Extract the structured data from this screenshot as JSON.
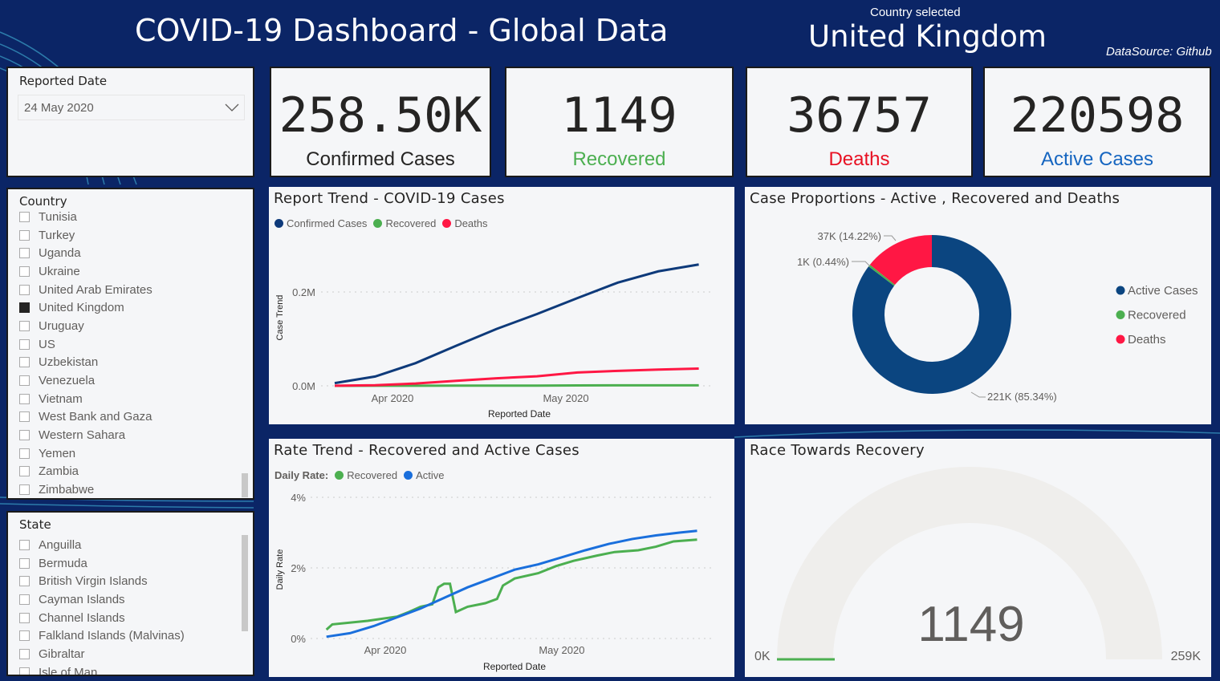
{
  "header": {
    "title": "COVID-19 Dashboard - Global Data",
    "country_caption": "Country selected",
    "country": "United Kingdom",
    "source": "DataSource: Github"
  },
  "date_slicer": {
    "title": "Reported Date",
    "value": "24 May 2020"
  },
  "kpis": [
    {
      "value": "258.50K",
      "label": "Confirmed Cases",
      "color": "#252423"
    },
    {
      "value": "1149",
      "label": "Recovered",
      "color": "#4caf50"
    },
    {
      "value": "36757",
      "label": "Deaths",
      "color": "#e81123"
    },
    {
      "value": "220598",
      "label": "Active Cases",
      "color": "#1565c0"
    }
  ],
  "country_slicer": {
    "title": "Country",
    "items": [
      {
        "label": "Tunisia",
        "checked": false
      },
      {
        "label": "Turkey",
        "checked": false
      },
      {
        "label": "Uganda",
        "checked": false
      },
      {
        "label": "Ukraine",
        "checked": false
      },
      {
        "label": "United Arab Emirates",
        "checked": false
      },
      {
        "label": "United Kingdom",
        "checked": true
      },
      {
        "label": "Uruguay",
        "checked": false
      },
      {
        "label": "US",
        "checked": false
      },
      {
        "label": "Uzbekistan",
        "checked": false
      },
      {
        "label": "Venezuela",
        "checked": false
      },
      {
        "label": "Vietnam",
        "checked": false
      },
      {
        "label": "West Bank and Gaza",
        "checked": false
      },
      {
        "label": "Western Sahara",
        "checked": false
      },
      {
        "label": "Yemen",
        "checked": false
      },
      {
        "label": "Zambia",
        "checked": false
      },
      {
        "label": "Zimbabwe",
        "checked": false
      }
    ]
  },
  "state_slicer": {
    "title": "State",
    "items": [
      {
        "label": "Anguilla"
      },
      {
        "label": "Bermuda"
      },
      {
        "label": "British Virgin Islands"
      },
      {
        "label": "Cayman Islands"
      },
      {
        "label": "Channel Islands"
      },
      {
        "label": "Falkland Islands (Malvinas)"
      },
      {
        "label": "Gibraltar"
      },
      {
        "label": "Isle of Man"
      }
    ]
  },
  "chart_data": [
    {
      "type": "line",
      "title": "Report Trend - COVID-19 Cases",
      "xlabel": "Reported Date",
      "ylabel": "Case Trend",
      "legend": "top-left",
      "x": [
        "2020-03-22",
        "2020-03-29",
        "2020-04-05",
        "2020-04-12",
        "2020-04-19",
        "2020-04-26",
        "2020-05-03",
        "2020-05-10",
        "2020-05-17",
        "2020-05-24"
      ],
      "xticks": [
        {
          "date": "2020-04-01",
          "label": "Apr 2020"
        },
        {
          "date": "2020-05-01",
          "label": "May 2020"
        }
      ],
      "yticks": [
        {
          "value": 0,
          "label": "0.0M"
        },
        {
          "value": 200000,
          "label": "0.2M"
        }
      ],
      "ylim": [
        0,
        270000
      ],
      "grid": true,
      "series": [
        {
          "name": "Confirmed Cases",
          "color": "#0e3a7a",
          "values": [
            5700,
            19800,
            48400,
            85200,
            121200,
            153000,
            187000,
            220000,
            244000,
            258504
          ]
        },
        {
          "name": "Recovered",
          "color": "#4caf50",
          "values": [
            65,
            135,
            135,
            344,
            344,
            344,
            859,
            1006,
            1149,
            1149
          ]
        },
        {
          "name": "Deaths",
          "color": "#ff1744",
          "values": [
            281,
            1228,
            4943,
            10629,
            16095,
            20369,
            28446,
            31930,
            34636,
            36757
          ]
        }
      ]
    },
    {
      "type": "pie",
      "title": "Case Proportions - Active , Recovered and Deaths",
      "legend": "right",
      "slices": [
        {
          "name": "Active Cases",
          "value": 220598,
          "label": "221K (85.34%)",
          "color": "#0b4580"
        },
        {
          "name": "Recovered",
          "value": 1149,
          "label": "1K (0.44%)",
          "color": "#4caf50"
        },
        {
          "name": "Deaths",
          "value": 36757,
          "label": "37K (14.22%)",
          "color": "#ff1744"
        }
      ]
    },
    {
      "type": "line",
      "title": "Rate Trend - Recovered and Active Cases",
      "legend_title": "Daily Rate:",
      "xlabel": "Reported Date",
      "ylabel": "Daily Rate",
      "legend": "top-left",
      "xticks": [
        {
          "date": "2020-04-01",
          "label": "Apr 2020"
        },
        {
          "date": "2020-05-01",
          "label": "May 2020"
        }
      ],
      "yticks": [
        {
          "value": 0,
          "label": "0%"
        },
        {
          "value": 2,
          "label": "2%"
        },
        {
          "value": 4,
          "label": "4%"
        }
      ],
      "ylim": [
        0,
        4
      ],
      "grid": true,
      "series": [
        {
          "name": "Recovered",
          "color": "#4caf50",
          "points": [
            [
              "2020-03-22",
              0.25
            ],
            [
              "2020-03-23",
              0.4
            ],
            [
              "2020-03-29",
              0.5
            ],
            [
              "2020-04-03",
              0.62
            ],
            [
              "2020-04-05",
              0.75
            ],
            [
              "2020-04-07",
              0.9
            ],
            [
              "2020-04-09",
              0.97
            ],
            [
              "2020-04-10",
              1.45
            ],
            [
              "2020-04-11",
              1.55
            ],
            [
              "2020-04-12",
              1.55
            ],
            [
              "2020-04-13",
              0.75
            ],
            [
              "2020-04-15",
              0.9
            ],
            [
              "2020-04-18",
              1.0
            ],
            [
              "2020-04-20",
              1.12
            ],
            [
              "2020-04-21",
              1.5
            ],
            [
              "2020-04-23",
              1.7
            ],
            [
              "2020-04-27",
              1.85
            ],
            [
              "2020-04-30",
              2.05
            ],
            [
              "2020-05-03",
              2.2
            ],
            [
              "2020-05-07",
              2.35
            ],
            [
              "2020-05-10",
              2.45
            ],
            [
              "2020-05-14",
              2.5
            ],
            [
              "2020-05-17",
              2.6
            ],
            [
              "2020-05-20",
              2.75
            ],
            [
              "2020-05-24",
              2.8
            ]
          ]
        },
        {
          "name": "Active",
          "color": "#1a6fdc",
          "points": [
            [
              "2020-03-22",
              0.05
            ],
            [
              "2020-03-26",
              0.15
            ],
            [
              "2020-03-30",
              0.35
            ],
            [
              "2020-04-03",
              0.6
            ],
            [
              "2020-04-07",
              0.85
            ],
            [
              "2020-04-11",
              1.15
            ],
            [
              "2020-04-15",
              1.45
            ],
            [
              "2020-04-19",
              1.7
            ],
            [
              "2020-04-23",
              1.95
            ],
            [
              "2020-04-27",
              2.1
            ],
            [
              "2020-05-01",
              2.3
            ],
            [
              "2020-05-05",
              2.5
            ],
            [
              "2020-05-09",
              2.68
            ],
            [
              "2020-05-13",
              2.82
            ],
            [
              "2020-05-17",
              2.92
            ],
            [
              "2020-05-21",
              3.0
            ],
            [
              "2020-05-24",
              3.05
            ]
          ]
        }
      ]
    },
    {
      "type": "gauge",
      "title": "Race Towards Recovery",
      "value": 1149,
      "value_label": "1149",
      "min_label": "0K",
      "max_label": "259K",
      "min": 0,
      "max": 258504,
      "fill_color": "#4caf50",
      "track_color": "#efeeec"
    }
  ]
}
